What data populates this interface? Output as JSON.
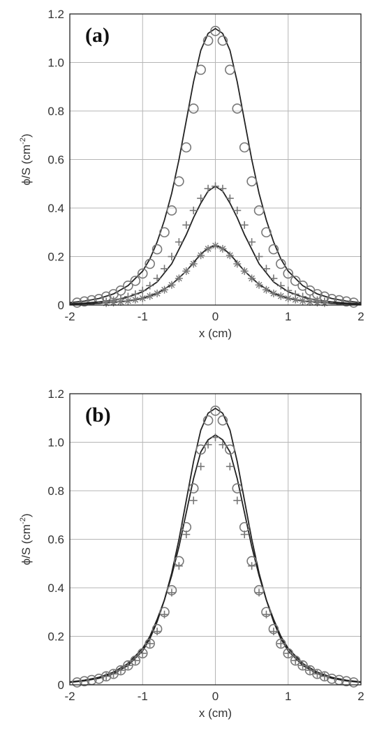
{
  "chart_data": [
    {
      "type": "line",
      "panel_label": "(a)",
      "xlabel": "x (cm)",
      "ylabel_main": "ϕ/S (cm",
      "ylabel_sup": "-2",
      "ylabel_close": ")",
      "xlim": [
        -2,
        2
      ],
      "ylim": [
        0,
        1.2
      ],
      "xticks": [
        -2,
        -1,
        0,
        1,
        2
      ],
      "yticks": [
        0,
        0.2,
        0.4,
        0.6,
        0.8,
        1.0,
        1.2
      ],
      "ytick_labels": [
        "0",
        "0.2",
        "0.4",
        "0.6",
        "0.8",
        "1.0",
        "1.2"
      ],
      "grid": true,
      "series": [
        {
          "kind": "line",
          "color": "#222222",
          "x": [
            -2.0,
            -1.8,
            -1.6,
            -1.4,
            -1.2,
            -1.0,
            -0.9,
            -0.8,
            -0.7,
            -0.6,
            -0.5,
            -0.4,
            -0.3,
            -0.2,
            -0.1,
            0.0,
            0.1,
            0.2,
            0.3,
            0.4,
            0.5,
            0.6,
            0.7,
            0.8,
            0.9,
            1.0,
            1.2,
            1.4,
            1.6,
            1.8,
            2.0
          ],
          "y": [
            0.01,
            0.016,
            0.027,
            0.046,
            0.08,
            0.14,
            0.19,
            0.26,
            0.35,
            0.46,
            0.6,
            0.76,
            0.92,
            1.05,
            1.12,
            1.14,
            1.12,
            1.05,
            0.92,
            0.76,
            0.6,
            0.46,
            0.35,
            0.26,
            0.19,
            0.14,
            0.08,
            0.046,
            0.027,
            0.016,
            0.01
          ]
        },
        {
          "kind": "marker",
          "marker": "circle",
          "color": "#777777",
          "x": [
            -1.9,
            -1.8,
            -1.7,
            -1.6,
            -1.5,
            -1.4,
            -1.3,
            -1.2,
            -1.1,
            -1.0,
            -0.9,
            -0.8,
            -0.7,
            -0.6,
            -0.5,
            -0.4,
            -0.3,
            -0.2,
            -0.1,
            0.0,
            0.1,
            0.2,
            0.3,
            0.4,
            0.5,
            0.6,
            0.7,
            0.8,
            0.9,
            1.0,
            1.1,
            1.2,
            1.3,
            1.4,
            1.5,
            1.6,
            1.7,
            1.8,
            1.9
          ],
          "y": [
            0.01,
            0.015,
            0.02,
            0.025,
            0.035,
            0.045,
            0.06,
            0.08,
            0.1,
            0.13,
            0.17,
            0.23,
            0.3,
            0.39,
            0.51,
            0.65,
            0.81,
            0.97,
            1.09,
            1.13,
            1.09,
            0.97,
            0.81,
            0.65,
            0.51,
            0.39,
            0.3,
            0.23,
            0.17,
            0.13,
            0.1,
            0.08,
            0.06,
            0.045,
            0.035,
            0.025,
            0.02,
            0.015,
            0.01
          ]
        },
        {
          "kind": "line",
          "color": "#222222",
          "x": [
            -2.0,
            -1.8,
            -1.6,
            -1.4,
            -1.2,
            -1.0,
            -0.8,
            -0.6,
            -0.4,
            -0.3,
            -0.2,
            -0.1,
            0.0,
            0.1,
            0.2,
            0.3,
            0.4,
            0.6,
            0.8,
            1.0,
            1.2,
            1.4,
            1.6,
            1.8,
            2.0
          ],
          "y": [
            0.005,
            0.008,
            0.013,
            0.02,
            0.033,
            0.055,
            0.095,
            0.17,
            0.29,
            0.36,
            0.42,
            0.47,
            0.49,
            0.47,
            0.42,
            0.36,
            0.29,
            0.17,
            0.095,
            0.055,
            0.033,
            0.02,
            0.013,
            0.008,
            0.005
          ]
        },
        {
          "kind": "marker",
          "marker": "plus",
          "color": "#777777",
          "x": [
            -1.5,
            -1.4,
            -1.3,
            -1.2,
            -1.1,
            -1.0,
            -0.9,
            -0.8,
            -0.7,
            -0.6,
            -0.5,
            -0.4,
            -0.3,
            -0.2,
            -0.1,
            0.0,
            0.1,
            0.2,
            0.3,
            0.4,
            0.5,
            0.6,
            0.7,
            0.8,
            0.9,
            1.0,
            1.1,
            1.2,
            1.3,
            1.4,
            1.5
          ],
          "y": [
            0.015,
            0.02,
            0.025,
            0.035,
            0.045,
            0.06,
            0.08,
            0.11,
            0.15,
            0.2,
            0.26,
            0.33,
            0.39,
            0.44,
            0.48,
            0.49,
            0.48,
            0.44,
            0.39,
            0.33,
            0.26,
            0.2,
            0.15,
            0.11,
            0.08,
            0.06,
            0.045,
            0.035,
            0.025,
            0.02,
            0.015
          ]
        },
        {
          "kind": "line",
          "color": "#222222",
          "x": [
            -2.0,
            -1.6,
            -1.2,
            -1.0,
            -0.8,
            -0.6,
            -0.4,
            -0.3,
            -0.2,
            -0.1,
            0.0,
            0.1,
            0.2,
            0.3,
            0.4,
            0.6,
            0.8,
            1.0,
            1.2,
            1.6,
            2.0
          ],
          "y": [
            0.003,
            0.007,
            0.017,
            0.028,
            0.048,
            0.085,
            0.14,
            0.175,
            0.21,
            0.235,
            0.245,
            0.235,
            0.21,
            0.175,
            0.14,
            0.085,
            0.048,
            0.028,
            0.017,
            0.007,
            0.003
          ]
        },
        {
          "kind": "marker",
          "marker": "asterisk",
          "color": "#777777",
          "x": [
            -1.5,
            -1.4,
            -1.3,
            -1.2,
            -1.1,
            -1.0,
            -0.9,
            -0.8,
            -0.7,
            -0.6,
            -0.5,
            -0.4,
            -0.3,
            -0.2,
            -0.1,
            0.0,
            0.1,
            0.2,
            0.3,
            0.4,
            0.5,
            0.6,
            0.7,
            0.8,
            0.9,
            1.0,
            1.1,
            1.2,
            1.3,
            1.4,
            1.5
          ],
          "y": [
            0.008,
            0.01,
            0.013,
            0.017,
            0.022,
            0.028,
            0.037,
            0.048,
            0.063,
            0.083,
            0.11,
            0.14,
            0.17,
            0.205,
            0.232,
            0.245,
            0.232,
            0.205,
            0.17,
            0.14,
            0.11,
            0.083,
            0.063,
            0.048,
            0.037,
            0.028,
            0.022,
            0.017,
            0.013,
            0.01,
            0.008
          ]
        }
      ]
    },
    {
      "type": "line",
      "panel_label": "(b)",
      "xlabel": "x (cm)",
      "ylabel_main": "ϕ/S (cm",
      "ylabel_sup": "-2",
      "ylabel_close": ")",
      "xlim": [
        -2,
        2
      ],
      "ylim": [
        0,
        1.2
      ],
      "xticks": [
        -2,
        -1,
        0,
        1,
        2
      ],
      "yticks": [
        0,
        0.2,
        0.4,
        0.6,
        0.8,
        1.0,
        1.2
      ],
      "ytick_labels": [
        "0",
        "0.2",
        "0.4",
        "0.6",
        "0.8",
        "1.0",
        "1.2"
      ],
      "grid": true,
      "series": [
        {
          "kind": "line",
          "color": "#222222",
          "x": [
            -2.0,
            -1.8,
            -1.6,
            -1.4,
            -1.2,
            -1.0,
            -0.9,
            -0.8,
            -0.7,
            -0.6,
            -0.5,
            -0.4,
            -0.3,
            -0.2,
            -0.1,
            0.0,
            0.1,
            0.2,
            0.3,
            0.4,
            0.5,
            0.6,
            0.7,
            0.8,
            0.9,
            1.0,
            1.2,
            1.4,
            1.6,
            1.8,
            2.0
          ],
          "y": [
            0.01,
            0.016,
            0.027,
            0.046,
            0.08,
            0.14,
            0.19,
            0.26,
            0.35,
            0.46,
            0.6,
            0.76,
            0.92,
            1.05,
            1.12,
            1.14,
            1.12,
            1.05,
            0.92,
            0.76,
            0.6,
            0.46,
            0.35,
            0.26,
            0.19,
            0.14,
            0.08,
            0.046,
            0.027,
            0.016,
            0.01
          ]
        },
        {
          "kind": "line",
          "color": "#222222",
          "x": [
            -2.0,
            -1.8,
            -1.6,
            -1.4,
            -1.2,
            -1.0,
            -0.9,
            -0.8,
            -0.7,
            -0.6,
            -0.5,
            -0.4,
            -0.3,
            -0.2,
            -0.1,
            0.0,
            0.1,
            0.2,
            0.3,
            0.4,
            0.5,
            0.6,
            0.7,
            0.8,
            0.9,
            1.0,
            1.2,
            1.4,
            1.6,
            1.8,
            2.0
          ],
          "y": [
            0.012,
            0.019,
            0.031,
            0.052,
            0.088,
            0.15,
            0.2,
            0.27,
            0.35,
            0.45,
            0.57,
            0.71,
            0.85,
            0.96,
            1.01,
            1.03,
            1.01,
            0.96,
            0.85,
            0.71,
            0.57,
            0.45,
            0.35,
            0.27,
            0.2,
            0.15,
            0.088,
            0.052,
            0.031,
            0.019,
            0.012
          ]
        },
        {
          "kind": "marker",
          "marker": "circle",
          "color": "#777777",
          "x": [
            -1.9,
            -1.8,
            -1.7,
            -1.6,
            -1.5,
            -1.4,
            -1.3,
            -1.2,
            -1.1,
            -1.0,
            -0.9,
            -0.8,
            -0.7,
            -0.6,
            -0.5,
            -0.4,
            -0.3,
            -0.2,
            -0.1,
            0.0,
            0.1,
            0.2,
            0.3,
            0.4,
            0.5,
            0.6,
            0.7,
            0.8,
            0.9,
            1.0,
            1.1,
            1.2,
            1.3,
            1.4,
            1.5,
            1.6,
            1.7,
            1.8,
            1.9
          ],
          "y": [
            0.01,
            0.015,
            0.02,
            0.025,
            0.035,
            0.045,
            0.06,
            0.08,
            0.1,
            0.13,
            0.17,
            0.23,
            0.3,
            0.39,
            0.51,
            0.65,
            0.81,
            0.97,
            1.09,
            1.13,
            1.09,
            0.97,
            0.81,
            0.65,
            0.51,
            0.39,
            0.3,
            0.23,
            0.17,
            0.13,
            0.1,
            0.08,
            0.06,
            0.045,
            0.035,
            0.025,
            0.02,
            0.015,
            0.01
          ]
        },
        {
          "kind": "marker",
          "marker": "plus",
          "color": "#777777",
          "x": [
            -1.5,
            -1.4,
            -1.3,
            -1.2,
            -1.1,
            -1.0,
            -0.9,
            -0.8,
            -0.7,
            -0.6,
            -0.5,
            -0.4,
            -0.3,
            -0.2,
            -0.1,
            0.0,
            0.1,
            0.2,
            0.3,
            0.4,
            0.5,
            0.6,
            0.7,
            0.8,
            0.9,
            1.0,
            1.1,
            1.2,
            1.3,
            1.4,
            1.5
          ],
          "y": [
            0.035,
            0.045,
            0.06,
            0.08,
            0.1,
            0.13,
            0.17,
            0.22,
            0.29,
            0.38,
            0.49,
            0.62,
            0.76,
            0.9,
            0.99,
            1.02,
            0.99,
            0.9,
            0.76,
            0.62,
            0.49,
            0.38,
            0.29,
            0.22,
            0.17,
            0.13,
            0.1,
            0.08,
            0.06,
            0.045,
            0.035
          ]
        }
      ]
    }
  ]
}
